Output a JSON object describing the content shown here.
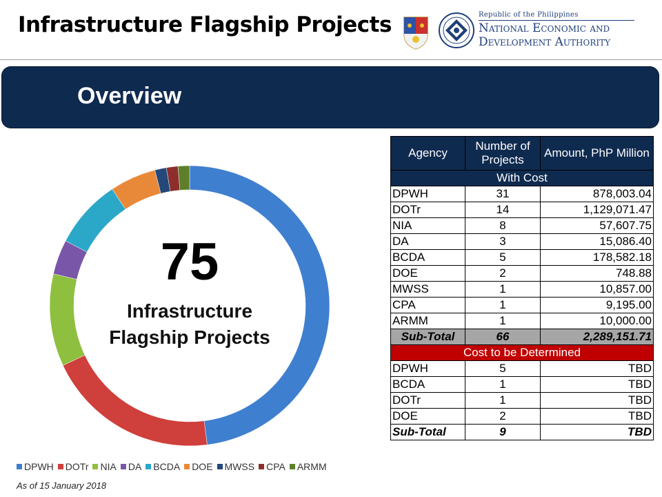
{
  "header": {
    "title": "Infrastructure Flagship Projects",
    "neda_republic": "Republic of the Philippines",
    "neda_line1": "National Economic and",
    "neda_line2": "Development Authority"
  },
  "banner": {
    "title": "Overview"
  },
  "donut": {
    "center_number": "75",
    "center_label_line1": "Infrastructure",
    "center_label_line2": "Flagship Projects",
    "colors": {
      "DPWH": "#3f7fcf",
      "DOTr": "#cf3f3b",
      "NIA": "#8fbf3f",
      "DA": "#7a56a8",
      "BCDA": "#2ba8c8",
      "DOE": "#e8893a",
      "MWSS": "#24487a",
      "CPA": "#8c2f2c",
      "ARMM": "#5e7f2a"
    }
  },
  "chart_data": {
    "type": "pie",
    "categories": [
      "DPWH",
      "DOTr",
      "NIA",
      "DA",
      "BCDA",
      "DOE",
      "MWSS",
      "CPA",
      "ARMM"
    ],
    "values": [
      36,
      15,
      8,
      3,
      6,
      4,
      1,
      1,
      1
    ]
  },
  "legend": {
    "items": [
      {
        "label": "DPWH",
        "color": "#3f7fcf"
      },
      {
        "label": "DOTr",
        "color": "#cf3f3b"
      },
      {
        "label": "NIA",
        "color": "#8fbf3f"
      },
      {
        "label": "DA",
        "color": "#7a56a8"
      },
      {
        "label": "BCDA",
        "color": "#2ba8c8"
      },
      {
        "label": "DOE",
        "color": "#e8893a"
      },
      {
        "label": "MWSS",
        "color": "#24487a"
      },
      {
        "label": "CPA",
        "color": "#8c2f2c"
      },
      {
        "label": "ARMM",
        "color": "#5e7f2a"
      }
    ]
  },
  "footnote": "As of 15 January 2018",
  "table": {
    "headers": [
      "Agency",
      "Number of Projects",
      "Amount, PhP Million"
    ],
    "with_cost_label": "With Cost",
    "with_cost_rows": [
      {
        "agency": "DPWH",
        "count": "31",
        "amount": "878,003.04"
      },
      {
        "agency": "DOTr",
        "count": "14",
        "amount": "1,129,071.47"
      },
      {
        "agency": "NIA",
        "count": "8",
        "amount": "57,607.75"
      },
      {
        "agency": "DA",
        "count": "3",
        "amount": "15,086.40"
      },
      {
        "agency": "BCDA",
        "count": "5",
        "amount": "178,582.18"
      },
      {
        "agency": "DOE",
        "count": "2",
        "amount": "748.88"
      },
      {
        "agency": "MWSS",
        "count": "1",
        "amount": "10,857.00"
      },
      {
        "agency": "CPA",
        "count": "1",
        "amount": "9,195.00"
      },
      {
        "agency": "ARMM",
        "count": "1",
        "amount": "10,000.00"
      }
    ],
    "with_cost_subtotal": {
      "label": "Sub-Total",
      "count": "66",
      "amount": "2,289,151.71"
    },
    "tbd_label": "Cost to be Determined",
    "tbd_rows": [
      {
        "agency": "DPWH",
        "count": "5",
        "amount": "TBD"
      },
      {
        "agency": "BCDA",
        "count": "1",
        "amount": "TBD"
      },
      {
        "agency": "DOTr",
        "count": "1",
        "amount": "TBD"
      },
      {
        "agency": "DOE",
        "count": "2",
        "amount": "TBD"
      }
    ],
    "tbd_subtotal": {
      "label": "Sub-Total",
      "count": "9",
      "amount": "TBD"
    }
  }
}
